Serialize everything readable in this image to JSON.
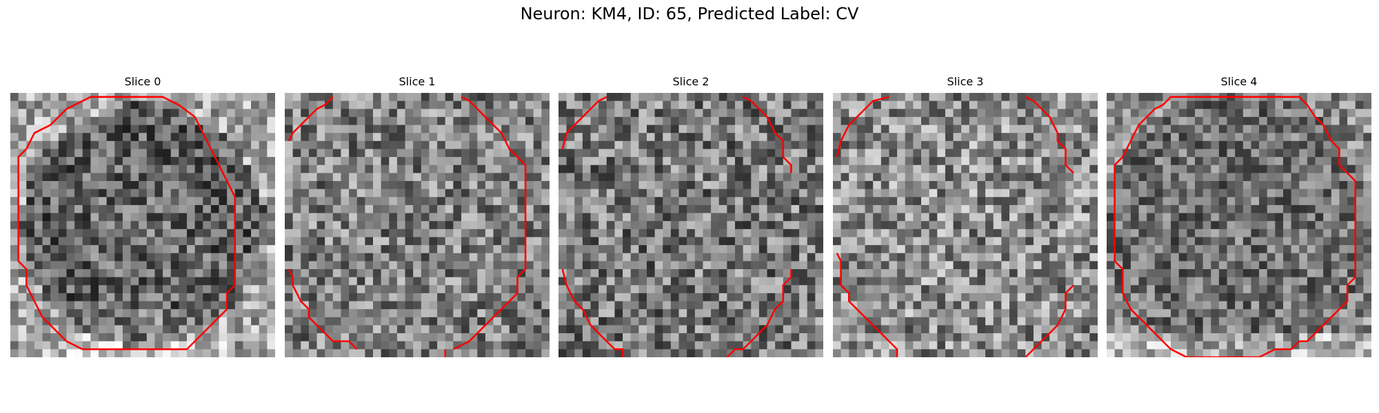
{
  "figure": {
    "title": "Neuron: KM4, ID: 65, Predicted Label: CV"
  },
  "slices": [
    {
      "title": "Slice 0",
      "seed": 11,
      "mean": 120,
      "spread": 70,
      "vignette": "dark-ring",
      "contours": [
        [
          [
            2,
            7
          ],
          [
            3,
            5
          ],
          [
            5,
            4
          ],
          [
            6,
            3
          ],
          [
            7,
            2
          ],
          [
            9,
            1
          ],
          [
            10,
            0.5
          ],
          [
            19,
            0.5
          ],
          [
            21,
            1.5
          ],
          [
            23,
            3
          ],
          [
            24,
            5
          ],
          [
            25,
            7
          ],
          [
            26,
            9
          ],
          [
            27,
            11
          ],
          [
            28,
            13
          ],
          [
            28,
            24
          ],
          [
            27,
            25
          ],
          [
            27,
            27
          ],
          [
            26,
            28
          ],
          [
            25,
            29
          ],
          [
            24,
            30
          ],
          [
            23,
            31
          ],
          [
            22,
            32
          ],
          [
            19,
            32
          ],
          [
            9,
            32
          ],
          [
            7,
            31
          ],
          [
            6,
            30
          ],
          [
            5,
            29
          ],
          [
            4,
            28
          ],
          [
            3,
            26
          ],
          [
            2,
            24
          ],
          [
            2,
            22
          ],
          [
            1,
            21
          ],
          [
            1,
            8
          ],
          [
            2,
            7
          ]
        ]
      ]
    },
    {
      "title": "Slice 1",
      "seed": 23,
      "mean": 128,
      "spread": 75,
      "vignette": "none",
      "contours": [
        [
          [
            0.5,
            6
          ],
          [
            1,
            5
          ],
          [
            2,
            4
          ],
          [
            3,
            3
          ],
          [
            4,
            2
          ],
          [
            5,
            1.5
          ],
          [
            6,
            0.5
          ]
        ],
        [
          [
            22,
            0.5
          ],
          [
            23,
            1
          ],
          [
            24,
            2
          ],
          [
            25,
            3
          ],
          [
            26,
            4
          ],
          [
            27,
            5
          ],
          [
            28,
            7
          ],
          [
            29,
            8
          ],
          [
            30,
            9
          ],
          [
            30,
            22
          ],
          [
            29,
            23
          ],
          [
            29,
            25
          ],
          [
            28,
            26
          ],
          [
            27,
            27
          ],
          [
            26,
            28
          ],
          [
            25,
            29
          ],
          [
            24,
            30
          ],
          [
            23,
            31
          ],
          [
            21,
            32
          ]
        ],
        [
          [
            0.5,
            22
          ],
          [
            1,
            23
          ],
          [
            1,
            24
          ],
          [
            2,
            26
          ],
          [
            3,
            27
          ],
          [
            3,
            28
          ],
          [
            4,
            29
          ],
          [
            5,
            30
          ],
          [
            6,
            31
          ],
          [
            8,
            31
          ],
          [
            9,
            32
          ]
        ],
        [
          [
            20,
            32
          ],
          [
            20,
            33
          ]
        ]
      ]
    },
    {
      "title": "Slice 2",
      "seed": 37,
      "mean": 122,
      "spread": 78,
      "vignette": "none",
      "contours": [
        [
          [
            0.5,
            7
          ],
          [
            1,
            5
          ],
          [
            2,
            4
          ],
          [
            3,
            3
          ],
          [
            4,
            2
          ],
          [
            5,
            1
          ],
          [
            6,
            0.5
          ]
        ],
        [
          [
            23,
            0.5
          ],
          [
            24,
            1
          ],
          [
            25,
            2
          ],
          [
            26,
            3
          ],
          [
            27,
            5
          ],
          [
            28,
            6
          ],
          [
            28,
            8
          ],
          [
            29,
            9
          ],
          [
            29,
            10
          ]
        ],
        [
          [
            0.5,
            22
          ],
          [
            1,
            24
          ],
          [
            2,
            26
          ],
          [
            3,
            27
          ],
          [
            4,
            29
          ],
          [
            5,
            30
          ],
          [
            6,
            31
          ],
          [
            7,
            32
          ],
          [
            8,
            32
          ],
          [
            8,
            33
          ]
        ],
        [
          [
            21,
            33
          ],
          [
            22,
            32
          ],
          [
            23,
            32
          ],
          [
            24,
            31
          ],
          [
            25,
            30
          ],
          [
            26,
            29
          ],
          [
            27,
            27
          ],
          [
            28,
            26
          ],
          [
            28,
            24
          ],
          [
            29,
            23
          ],
          [
            29,
            22
          ]
        ]
      ]
    },
    {
      "title": "Slice 3",
      "seed": 53,
      "mean": 142,
      "spread": 80,
      "vignette": "none",
      "contours": [
        [
          [
            0.5,
            8
          ],
          [
            1,
            6
          ],
          [
            2,
            4
          ],
          [
            3,
            3
          ],
          [
            4,
            2
          ],
          [
            5,
            1
          ],
          [
            7,
            0.5
          ]
        ],
        [
          [
            24,
            0.5
          ],
          [
            25,
            1
          ],
          [
            26,
            2
          ],
          [
            27,
            3
          ],
          [
            28,
            5
          ],
          [
            28,
            6
          ],
          [
            29,
            7
          ],
          [
            29,
            9
          ],
          [
            30,
            10
          ]
        ],
        [
          [
            0.5,
            20
          ],
          [
            1,
            21
          ],
          [
            1,
            24
          ],
          [
            2,
            25
          ],
          [
            2,
            26
          ],
          [
            3,
            27
          ],
          [
            4,
            28
          ],
          [
            5,
            29
          ],
          [
            6,
            30
          ],
          [
            7,
            31
          ],
          [
            8,
            32
          ],
          [
            8,
            33
          ]
        ],
        [
          [
            24,
            33
          ],
          [
            25,
            32
          ],
          [
            26,
            31
          ],
          [
            27,
            30
          ],
          [
            28,
            29
          ],
          [
            29,
            27
          ],
          [
            29,
            25
          ],
          [
            30,
            24
          ]
        ]
      ]
    },
    {
      "title": "Slice 4",
      "seed": 71,
      "mean": 112,
      "spread": 66,
      "vignette": "light-bottom",
      "contours": [
        [
          [
            2,
            8
          ],
          [
            3,
            6
          ],
          [
            4,
            4
          ],
          [
            5,
            3
          ],
          [
            6,
            2
          ],
          [
            7,
            1.5
          ],
          [
            8,
            0.5
          ],
          [
            24,
            0.5
          ],
          [
            25,
            1.5
          ],
          [
            26,
            3
          ],
          [
            27,
            4
          ],
          [
            28,
            6
          ],
          [
            29,
            7
          ],
          [
            29,
            9
          ],
          [
            30,
            10
          ],
          [
            31,
            11
          ],
          [
            31,
            23
          ],
          [
            30,
            24
          ],
          [
            30,
            26
          ],
          [
            29,
            27
          ],
          [
            28,
            28
          ],
          [
            27,
            29
          ],
          [
            26,
            30
          ],
          [
            25,
            31
          ],
          [
            24,
            31
          ],
          [
            23,
            32
          ],
          [
            21,
            32
          ],
          [
            19,
            33
          ],
          [
            10,
            33
          ],
          [
            8,
            32
          ],
          [
            7,
            31
          ],
          [
            6,
            30
          ],
          [
            5,
            29
          ],
          [
            4,
            28
          ],
          [
            3,
            27
          ],
          [
            2,
            25
          ],
          [
            2,
            22
          ],
          [
            1,
            21
          ],
          [
            1,
            11
          ],
          [
            1,
            9
          ],
          [
            2,
            8
          ]
        ]
      ]
    }
  ],
  "colors": {
    "contour": "#ff0000",
    "background": "#ffffff"
  }
}
